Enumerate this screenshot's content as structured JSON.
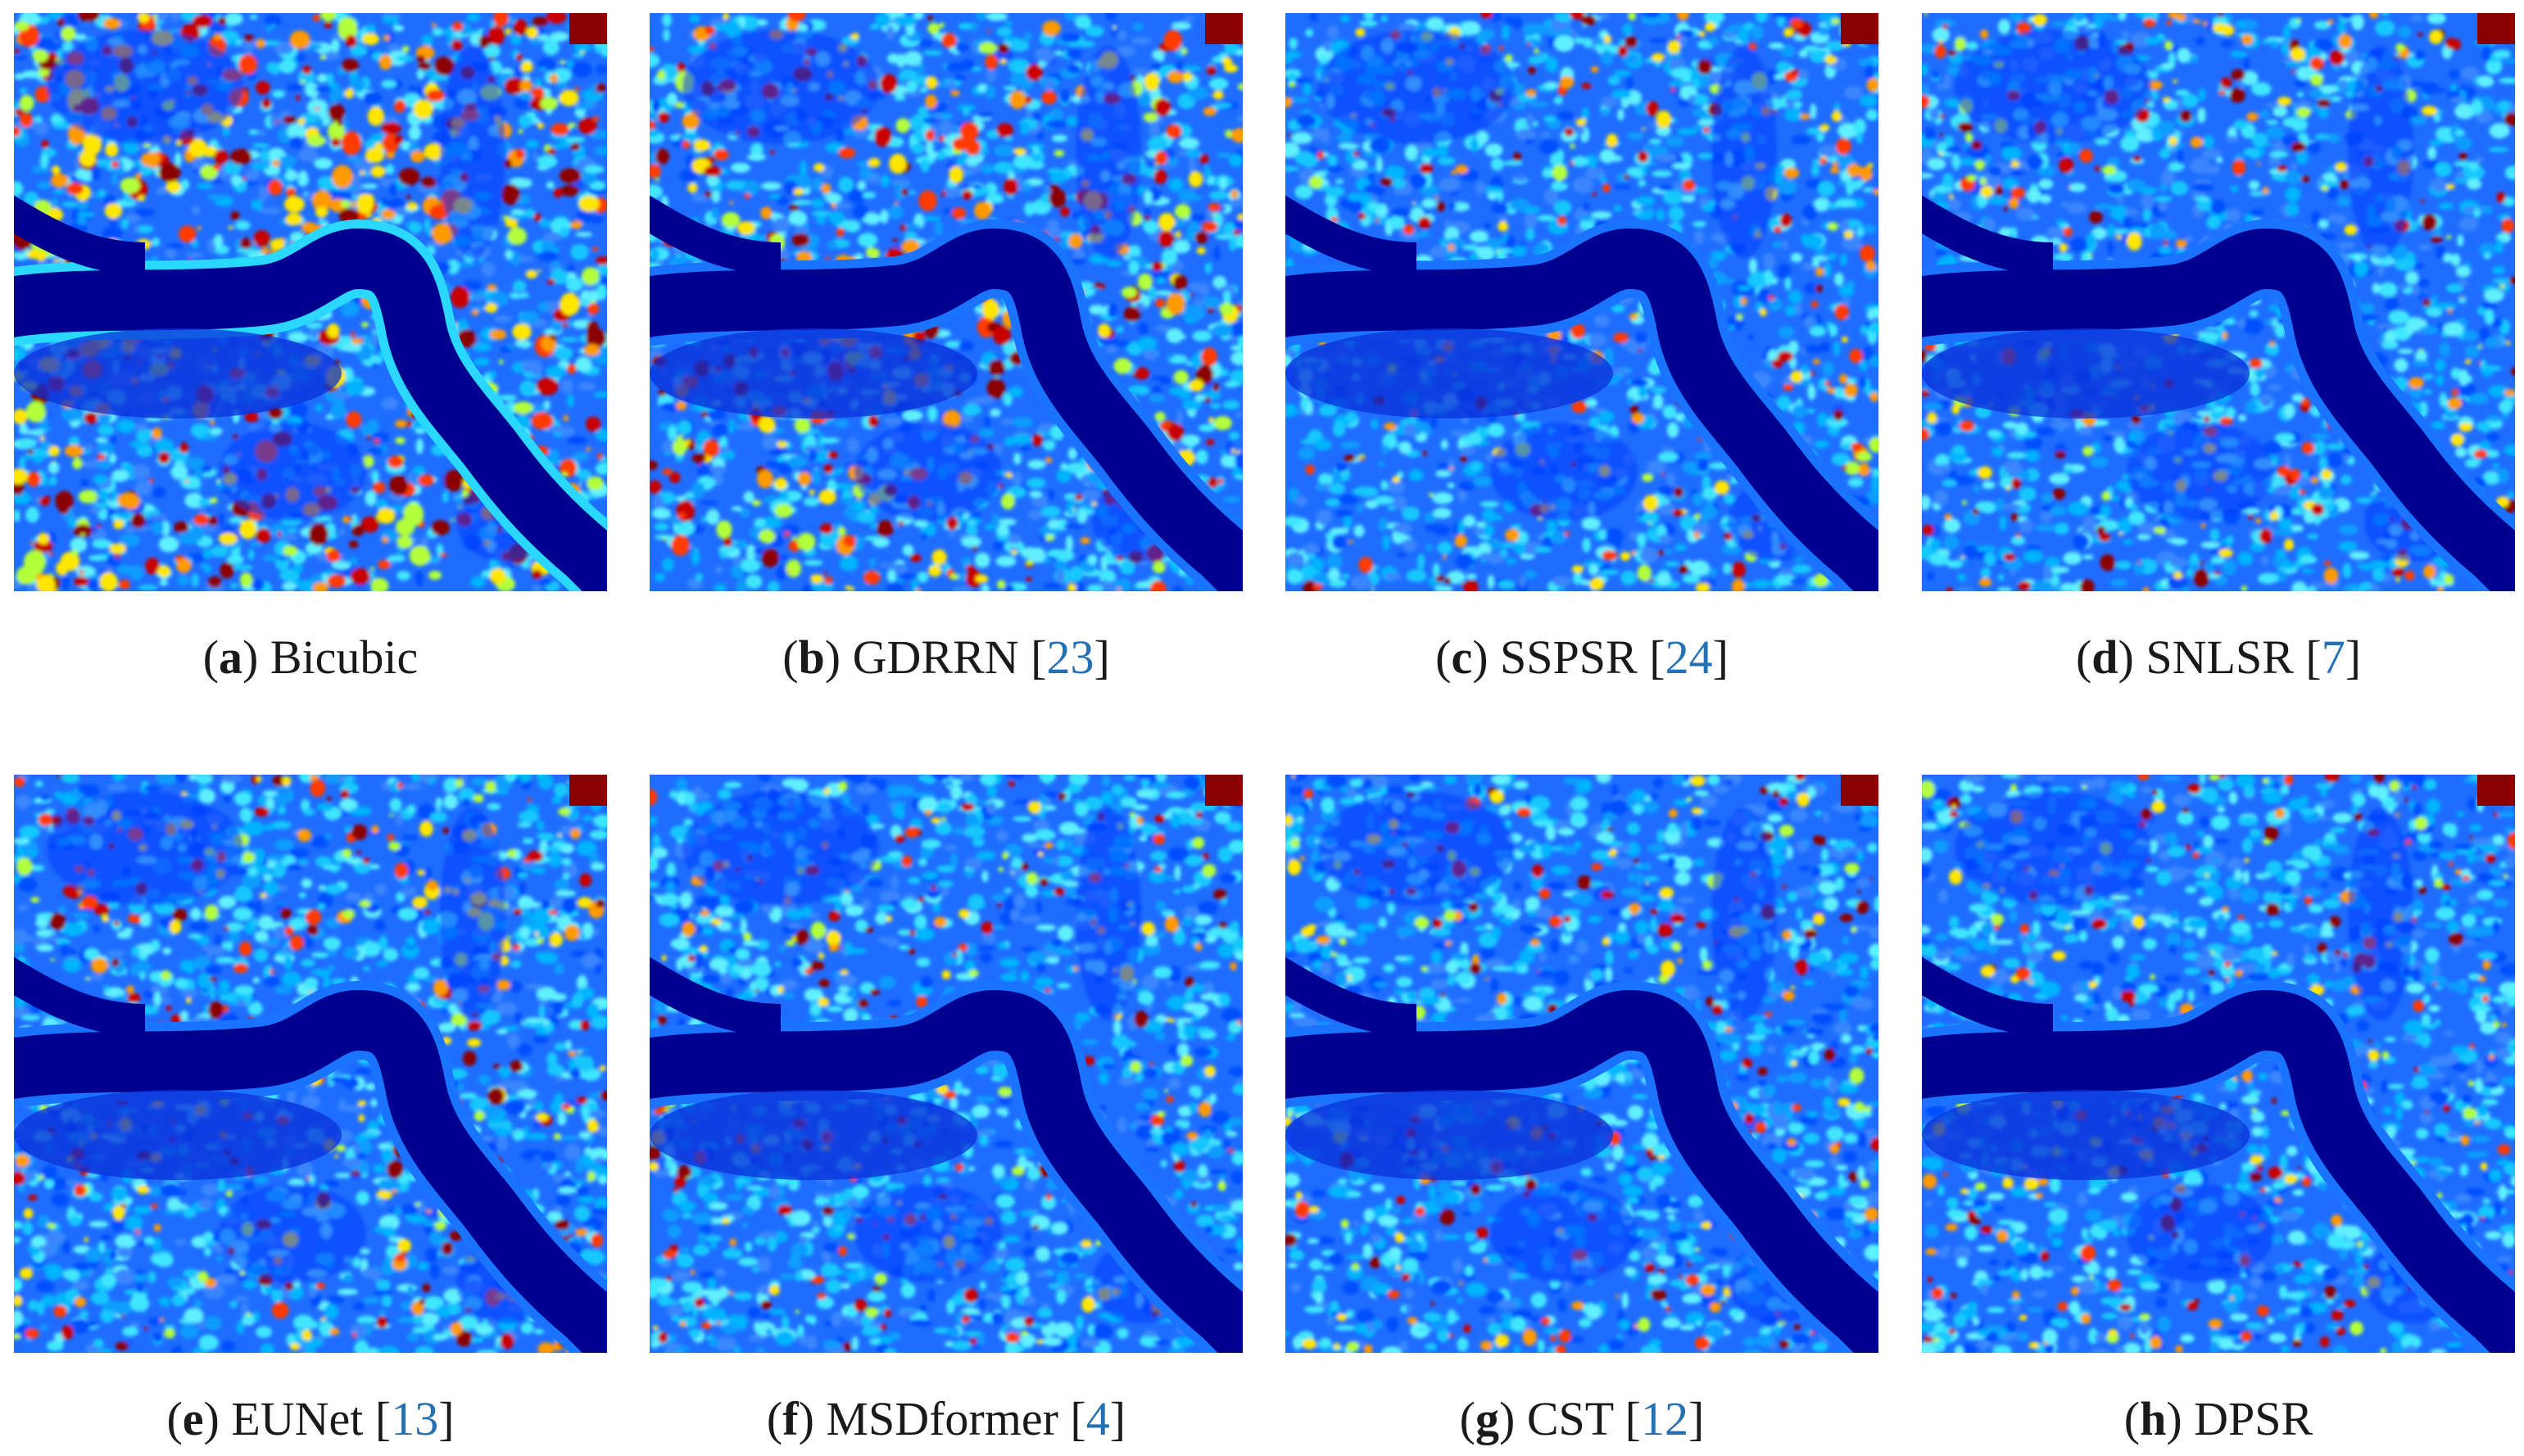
{
  "figure": {
    "colormap": "jet",
    "panels": [
      {
        "letter": "a",
        "method": "Bicubic",
        "ref": "",
        "hot_level": 0.95,
        "seed": 11
      },
      {
        "letter": "b",
        "method": "GDRRN",
        "ref": "23",
        "hot_level": 0.7,
        "seed": 23
      },
      {
        "letter": "c",
        "method": "SSPSR",
        "ref": "24",
        "hot_level": 0.45,
        "seed": 37
      },
      {
        "letter": "d",
        "method": "SNLSR",
        "ref": "7",
        "hot_level": 0.45,
        "seed": 41
      },
      {
        "letter": "e",
        "method": "EUNet",
        "ref": "13",
        "hot_level": 0.55,
        "seed": 53
      },
      {
        "letter": "f",
        "method": "MSDformer",
        "ref": "4",
        "hot_level": 0.4,
        "seed": 67
      },
      {
        "letter": "g",
        "method": "CST",
        "ref": "12",
        "hot_level": 0.42,
        "seed": 71
      },
      {
        "letter": "h",
        "method": "DPSR",
        "ref": "",
        "hot_level": 0.42,
        "seed": 83
      }
    ],
    "colors": {
      "caption_text": "#1a1a1a",
      "ref_link": "#2470b3",
      "river": "#00008f",
      "background": "#ffffff"
    }
  }
}
